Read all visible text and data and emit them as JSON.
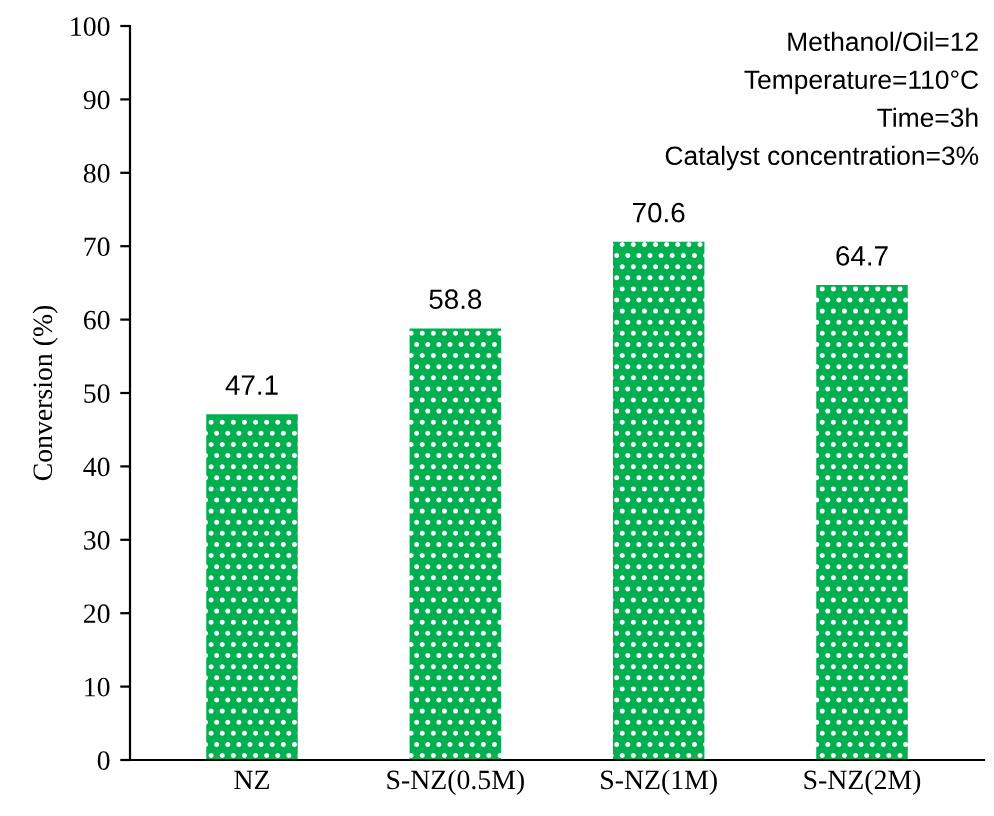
{
  "chart_data": {
    "type": "bar",
    "ylabel": "Conversion (%)",
    "categories": [
      "NZ",
      "S-NZ(0.5M)",
      "S-NZ(1M)",
      "S-NZ(2M)"
    ],
    "values": [
      47.1,
      58.8,
      70.6,
      64.7
    ],
    "color": "#00b050",
    "ylim": [
      0,
      100
    ],
    "yticks": [
      0,
      10,
      20,
      30,
      40,
      50,
      60,
      70,
      80,
      90,
      100
    ],
    "grid": false,
    "data_labels": true,
    "annotations": [
      "Methanol/Oil=12",
      "Temperature=110°C",
      "Time=3h",
      "Catalyst concentration=3%"
    ]
  }
}
